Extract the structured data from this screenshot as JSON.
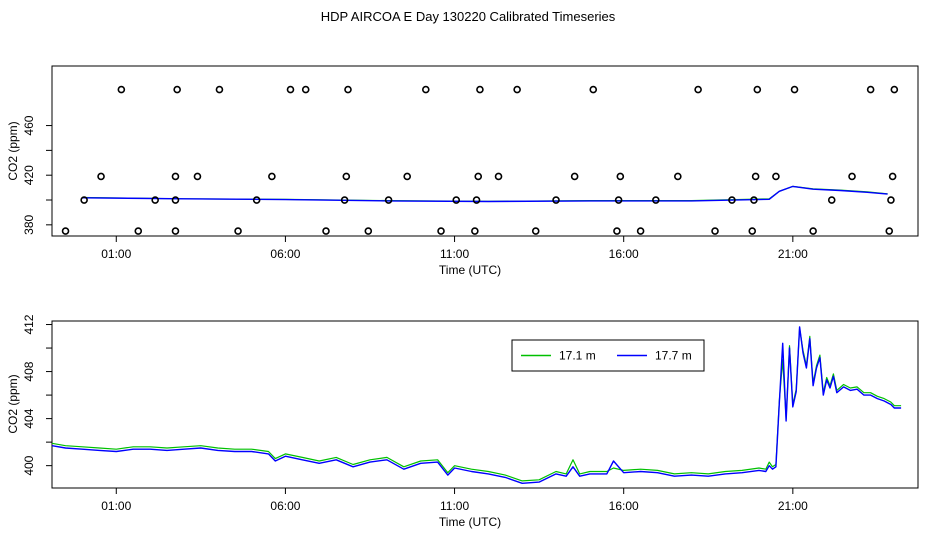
{
  "title": "HDP AIRCOA E  Day 130220  Calibrated Timeseries",
  "colors": {
    "green": "#00c000",
    "blue": "#0000ff",
    "black": "#000000"
  },
  "chart_data": [
    {
      "type": "scatter+line",
      "xlabel": "Time (UTC)",
      "ylabel": "CO2 (ppm)",
      "xticks": [
        1,
        6,
        11,
        16,
        21
      ],
      "xtick_labels": [
        "01:00",
        "06:00",
        "11:00",
        "16:00",
        "21:00"
      ],
      "xlim": [
        -0.9,
        24.7
      ],
      "yticks": [
        380,
        420,
        460
      ],
      "yticks_minor": [
        400,
        440
      ],
      "ylim": [
        371,
        508
      ],
      "points": {
        "marker": "open-circle",
        "x": [
          -0.5,
          0.05,
          0.55,
          1.15,
          1.65,
          2.15,
          2.75,
          2.75,
          2.75,
          2.8,
          3.4,
          4.05,
          4.6,
          5.15,
          5.6,
          6.15,
          6.6,
          7.2,
          7.75,
          7.8,
          7.85,
          8.45,
          9.05,
          9.6,
          10.15,
          10.6,
          11.05,
          11.6,
          11.65,
          11.7,
          11.75,
          12.3,
          12.85,
          13.4,
          14.0,
          14.55,
          15.1,
          15.8,
          15.85,
          15.9,
          16.5,
          16.95,
          17.6,
          18.2,
          18.7,
          19.2,
          19.8,
          19.85,
          19.9,
          19.95,
          20.5,
          21.05,
          21.6,
          22.15,
          22.75,
          23.3,
          23.85,
          23.9,
          23.95,
          24.0
        ],
        "y": [
          375,
          400,
          419,
          489,
          375,
          400,
          375,
          400,
          419,
          489,
          419,
          489,
          375,
          400,
          419,
          489,
          489,
          375,
          400,
          419,
          489,
          375,
          400,
          419,
          489,
          375,
          400,
          375,
          400,
          419,
          489,
          419,
          489,
          375,
          400,
          419,
          489,
          375,
          400,
          419,
          375,
          400,
          419,
          489,
          375,
          400,
          375,
          400,
          419,
          489,
          419,
          489,
          375,
          400,
          419,
          489,
          375,
          400,
          419,
          489
        ]
      },
      "series": [
        {
          "color": "green",
          "x": [
            0,
            3,
            6,
            9,
            12,
            15,
            18,
            20.3,
            20.6,
            21.0,
            21.6,
            22.4,
            23.2,
            23.8
          ],
          "y": [
            402,
            401,
            400.5,
            399.5,
            399,
            399.5,
            399.5,
            401,
            407,
            411,
            409,
            408,
            406.5,
            405
          ]
        },
        {
          "color": "blue",
          "x": [
            0,
            3,
            6,
            9,
            12,
            15,
            18,
            20.3,
            20.6,
            21.0,
            21.6,
            22.4,
            23.2,
            23.8
          ],
          "y": [
            401.8,
            401,
            400.3,
            399.3,
            398.8,
            399.3,
            399.3,
            400.6,
            407,
            411,
            408.7,
            407.7,
            406.2,
            404.8
          ]
        }
      ]
    },
    {
      "type": "line",
      "xlabel": "Time (UTC)",
      "ylabel": "CO2 (ppm)",
      "xticks": [
        1,
        6,
        11,
        16,
        21
      ],
      "xtick_labels": [
        "01:00",
        "06:00",
        "11:00",
        "16:00",
        "21:00"
      ],
      "xlim": [
        -0.9,
        24.7
      ],
      "yticks": [
        400,
        404,
        408,
        412
      ],
      "yticks_minor": [
        402,
        406,
        410
      ],
      "ylim": [
        398.1,
        412.3
      ],
      "legend": {
        "position": "top-right",
        "entries": [
          {
            "label": "17.1 m",
            "color": "green"
          },
          {
            "label": "17.7 m",
            "color": "blue"
          }
        ]
      },
      "series": [
        {
          "name": "17.1 m",
          "color": "green",
          "x": [
            -0.9,
            -0.5,
            0.0,
            0.5,
            1.0,
            1.5,
            2.0,
            2.5,
            3.0,
            3.5,
            4.0,
            4.5,
            5.0,
            5.5,
            5.7,
            6.0,
            6.5,
            7.0,
            7.5,
            8.0,
            8.5,
            9.0,
            9.5,
            10.0,
            10.5,
            10.8,
            11.0,
            11.5,
            12.0,
            12.5,
            13.0,
            13.5,
            14.0,
            14.3,
            14.5,
            14.7,
            15.0,
            15.5,
            15.7,
            16.0,
            16.5,
            17.0,
            17.5,
            18.0,
            18.5,
            19.0,
            19.5,
            20.0,
            20.2,
            20.3,
            20.4,
            20.5,
            20.6,
            20.7,
            20.8,
            20.9,
            21.0,
            21.1,
            21.2,
            21.3,
            21.4,
            21.5,
            21.6,
            21.7,
            21.8,
            21.9,
            22.0,
            22.1,
            22.2,
            22.3,
            22.5,
            22.7,
            22.9,
            23.1,
            23.3,
            23.5,
            23.7,
            23.9,
            24.0,
            24.2
          ],
          "y": [
            401.9,
            401.7,
            401.6,
            401.5,
            401.4,
            401.6,
            401.6,
            401.5,
            401.6,
            401.7,
            401.5,
            401.4,
            401.4,
            401.2,
            400.6,
            401.0,
            400.7,
            400.4,
            400.7,
            400.1,
            400.5,
            400.7,
            399.9,
            400.4,
            400.5,
            399.4,
            400.0,
            399.7,
            399.5,
            399.2,
            398.7,
            398.8,
            399.5,
            399.3,
            400.5,
            399.3,
            399.5,
            399.5,
            399.8,
            399.6,
            399.7,
            399.6,
            399.3,
            399.4,
            399.3,
            399.5,
            399.6,
            399.8,
            399.7,
            400.3,
            399.9,
            400.1,
            405.5,
            409.0,
            404.0,
            410.2,
            405.2,
            406.5,
            411.7,
            409.8,
            408.5,
            411.0,
            407.0,
            408.5,
            409.4,
            406.2,
            407.5,
            406.8,
            407.8,
            406.4,
            406.9,
            406.6,
            406.7,
            406.2,
            406.2,
            405.9,
            405.7,
            405.4,
            405.1,
            405.1
          ]
        },
        {
          "name": "17.7 m",
          "color": "blue",
          "x": [
            -0.9,
            -0.5,
            0.0,
            0.5,
            1.0,
            1.5,
            2.0,
            2.5,
            3.0,
            3.5,
            4.0,
            4.5,
            5.0,
            5.5,
            5.7,
            6.0,
            6.5,
            7.0,
            7.5,
            8.0,
            8.5,
            9.0,
            9.5,
            10.0,
            10.5,
            10.8,
            11.0,
            11.5,
            12.0,
            12.5,
            13.0,
            13.5,
            14.0,
            14.3,
            14.5,
            14.7,
            15.0,
            15.5,
            15.7,
            16.0,
            16.5,
            17.0,
            17.5,
            18.0,
            18.5,
            19.0,
            19.5,
            20.0,
            20.2,
            20.3,
            20.4,
            20.5,
            20.6,
            20.7,
            20.8,
            20.9,
            21.0,
            21.1,
            21.2,
            21.3,
            21.4,
            21.5,
            21.6,
            21.7,
            21.8,
            21.9,
            22.0,
            22.1,
            22.2,
            22.3,
            22.5,
            22.7,
            22.9,
            23.1,
            23.3,
            23.5,
            23.7,
            23.9,
            24.0,
            24.2
          ],
          "y": [
            401.7,
            401.5,
            401.4,
            401.3,
            401.2,
            401.4,
            401.4,
            401.3,
            401.4,
            401.5,
            401.3,
            401.2,
            401.2,
            401.0,
            400.4,
            400.8,
            400.5,
            400.2,
            400.5,
            399.9,
            400.3,
            400.5,
            399.7,
            400.2,
            400.3,
            399.2,
            399.8,
            399.5,
            399.3,
            399.0,
            398.5,
            398.6,
            399.3,
            399.1,
            399.9,
            399.1,
            399.3,
            399.3,
            400.4,
            399.4,
            399.5,
            399.4,
            399.1,
            399.2,
            399.1,
            399.3,
            399.4,
            399.6,
            399.5,
            400.0,
            399.7,
            399.9,
            405.3,
            410.4,
            403.8,
            410.0,
            405.0,
            406.3,
            411.8,
            409.6,
            408.3,
            410.8,
            406.8,
            408.3,
            409.2,
            406.0,
            407.3,
            406.6,
            407.6,
            406.2,
            406.7,
            406.4,
            406.5,
            406.0,
            406.0,
            405.7,
            405.5,
            405.2,
            404.9,
            404.9
          ]
        }
      ]
    }
  ]
}
